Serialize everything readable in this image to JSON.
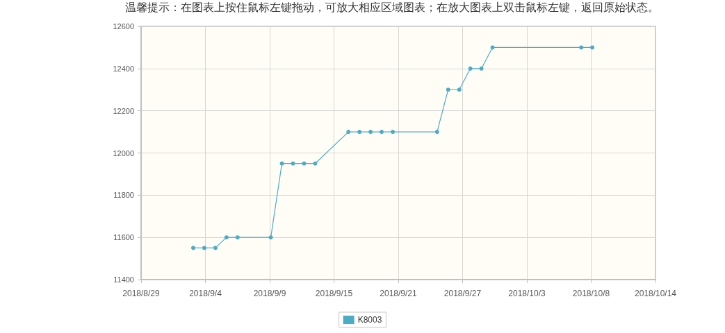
{
  "chart_data": {
    "type": "line",
    "annotations": [
      "温馨提示：在图表上按住鼠标左键拖动，可放大相应区域图表；在放大图表上双击鼠标左键，返回原始状态。"
    ],
    "x": [
      "2018-09-03",
      "2018-09-04",
      "2018-09-05",
      "2018-09-06",
      "2018-09-07",
      "2018-09-10",
      "2018-09-11",
      "2018-09-12",
      "2018-09-13",
      "2018-09-14",
      "2018-09-17",
      "2018-09-18",
      "2018-09-19",
      "2018-09-20",
      "2018-09-21",
      "2018-09-25",
      "2018-09-26",
      "2018-09-27",
      "2018-09-28",
      "2018-09-29",
      "2018-09-30",
      "2018-10-08",
      "2018-10-09"
    ],
    "series": [
      {
        "name": "K8003",
        "color": "#4bacc6",
        "values": [
          11550,
          11550,
          11550,
          11600,
          11600,
          11600,
          11950,
          11950,
          11950,
          11950,
          12100,
          12100,
          12100,
          12100,
          12100,
          12100,
          12300,
          12300,
          12400,
          12400,
          12500,
          12500,
          12500
        ]
      }
    ],
    "xlim": [
      "2018-08-29T07:12",
      "2018-10-14T16:48"
    ],
    "xticks": [
      {
        "value": "2018-08-29T07:12",
        "label": "2018/8/29"
      },
      {
        "value": "2018-09-04T02:24",
        "label": "2018/9/4"
      },
      {
        "value": "2018-09-09T21:36",
        "label": "2018/9/9"
      },
      {
        "value": "2018-09-15T16:48",
        "label": "2018/9/15"
      },
      {
        "value": "2018-09-21T12:00",
        "label": "2018/9/21"
      },
      {
        "value": "2018-09-27T07:12",
        "label": "2018/9/27"
      },
      {
        "value": "2018-10-03T02:24",
        "label": "2018/10/3"
      },
      {
        "value": "2018-10-08T21:36",
        "label": "2018/10/8"
      },
      {
        "value": "2018-10-14T16:48",
        "label": "2018/10/14"
      }
    ],
    "ylim": [
      11400,
      12600
    ],
    "yticks": [
      11400,
      11600,
      11800,
      12000,
      12200,
      12400,
      12600
    ],
    "grid": true,
    "legend": "bottom",
    "marker": "circle",
    "line_style": "solid"
  }
}
